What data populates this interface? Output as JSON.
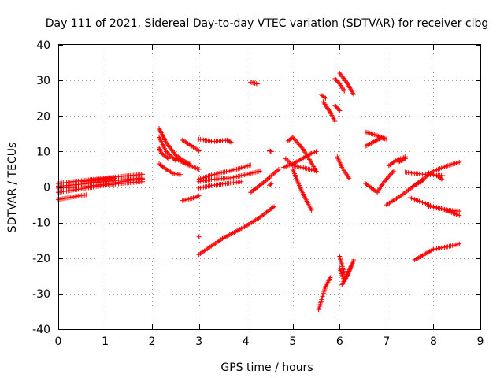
{
  "chart_data": {
    "type": "scatter",
    "title": "Day 111 of 2021, Sidereal Day-to-day VTEC variation (SDTVAR) for receiver cibg",
    "xlabel": "GPS time / hours",
    "ylabel": "SDTVAR / TECUs",
    "xlim": [
      0,
      9
    ],
    "ylim": [
      -40,
      40
    ],
    "xticks": [
      "0",
      "1",
      "2",
      "3",
      "4",
      "5",
      "6",
      "7",
      "8",
      "9"
    ],
    "yticks": [
      "-40",
      "-30",
      "-20",
      "-10",
      "0",
      "10",
      "20",
      "30",
      "40"
    ],
    "grid": true,
    "marker": "plus",
    "color": "#ff0000",
    "series": [
      {
        "segments": [
          [
            [
              0.0,
              1.0
            ],
            [
              0.5,
              1.8
            ],
            [
              1.0,
              2.5
            ],
            [
              1.5,
              3.2
            ],
            [
              1.8,
              3.6
            ]
          ],
          [
            [
              0.0,
              0.2
            ],
            [
              0.5,
              0.8
            ],
            [
              1.0,
              1.5
            ],
            [
              1.5,
              2.2
            ],
            [
              1.8,
              2.5
            ]
          ],
          [
            [
              0.0,
              -0.3
            ],
            [
              0.5,
              0.0
            ],
            [
              1.0,
              0.8
            ],
            [
              1.5,
              1.8
            ],
            [
              1.8,
              2.2
            ]
          ],
          [
            [
              0.0,
              -1.5
            ],
            [
              0.5,
              -0.5
            ],
            [
              1.0,
              0.5
            ],
            [
              1.5,
              1.2
            ],
            [
              1.8,
              1.5
            ]
          ],
          [
            [
              0.0,
              -3.5
            ],
            [
              0.3,
              -2.8
            ],
            [
              0.6,
              -2.2
            ]
          ],
          [
            [
              0.5,
              1.5
            ],
            [
              0.8,
              2.0
            ],
            [
              1.2,
              2.5
            ]
          ],
          [
            [
              2.15,
              16.5
            ],
            [
              2.3,
              12.5
            ],
            [
              2.5,
              9.0
            ],
            [
              2.7,
              7.2
            ],
            [
              2.8,
              6.5
            ]
          ],
          [
            [
              2.15,
              14.0
            ],
            [
              2.3,
              10.0
            ],
            [
              2.5,
              7.5
            ]
          ],
          [
            [
              2.15,
              11.0
            ],
            [
              2.2,
              9.5
            ],
            [
              2.35,
              8.0
            ]
          ],
          [
            [
              2.5,
              8.0
            ],
            [
              2.8,
              6.0
            ],
            [
              3.0,
              5.0
            ]
          ],
          [
            [
              2.15,
              6.5
            ],
            [
              2.3,
              5.0
            ],
            [
              2.45,
              3.8
            ],
            [
              2.6,
              3.5
            ]
          ],
          [
            [
              2.65,
              13.2
            ],
            [
              2.85,
              11.5
            ],
            [
              3.0,
              10.2
            ]
          ],
          [
            [
              2.65,
              -3.8
            ],
            [
              2.85,
              -3.2
            ],
            [
              3.0,
              -2.5
            ]
          ],
          [
            [
              3.0,
              13.5
            ],
            [
              3.3,
              12.8
            ],
            [
              3.6,
              13.2
            ],
            [
              3.7,
              12.5
            ]
          ],
          [
            [
              3.0,
              2.2
            ],
            [
              3.3,
              3.5
            ],
            [
              3.8,
              5.0
            ],
            [
              4.1,
              6.2
            ]
          ],
          [
            [
              3.0,
              1.5
            ],
            [
              3.3,
              2.2
            ],
            [
              3.7,
              2.6
            ],
            [
              4.0,
              3.5
            ],
            [
              4.3,
              4.5
            ]
          ],
          [
            [
              3.0,
              -0.3
            ],
            [
              3.3,
              0.5
            ],
            [
              3.6,
              1.0
            ],
            [
              3.9,
              1.5
            ]
          ],
          [
            [
              3.0,
              -19.0
            ],
            [
              3.5,
              -14.5
            ],
            [
              4.0,
              -11.0
            ],
            [
              4.3,
              -8.5
            ],
            [
              4.6,
              -5.5
            ]
          ],
          [
            [
              3.0,
              -14.0
            ]
          ],
          [
            [
              4.1,
              29.5
            ],
            [
              4.25,
              29.0
            ]
          ],
          [
            [
              4.1,
              -1.5
            ],
            [
              4.4,
              1.5
            ],
            [
              4.7,
              5.0
            ]
          ],
          [
            [
              4.5,
              10.2
            ],
            [
              4.55,
              10.0
            ]
          ],
          [
            [
              4.5,
              0.5
            ],
            [
              4.55,
              1.0
            ]
          ],
          [
            [
              4.8,
              5.5
            ],
            [
              5.0,
              6.5
            ],
            [
              5.2,
              8.0
            ],
            [
              5.4,
              9.5
            ],
            [
              5.5,
              10.0
            ]
          ],
          [
            [
              4.85,
              8.0
            ],
            [
              5.0,
              6.0
            ],
            [
              5.2,
              5.5
            ],
            [
              5.5,
              4.5
            ]
          ],
          [
            [
              4.9,
              13.0
            ],
            [
              5.0,
              14.0
            ],
            [
              5.2,
              11.0
            ],
            [
              5.3,
              9.0
            ],
            [
              5.5,
              4.5
            ]
          ],
          [
            [
              5.0,
              5.0
            ],
            [
              5.15,
              0.0
            ],
            [
              5.3,
              -4.0
            ],
            [
              5.4,
              -6.5
            ]
          ],
          [
            [
              5.6,
              26.0
            ],
            [
              5.7,
              25.0
            ]
          ],
          [
            [
              5.65,
              24.0
            ],
            [
              5.8,
              21.0
            ],
            [
              5.9,
              18.5
            ]
          ],
          [
            [
              5.55,
              -34.5
            ],
            [
              5.7,
              -28.0
            ],
            [
              5.8,
              -25.5
            ]
          ],
          [
            [
              5.9,
              30.5
            ],
            [
              6.0,
              29.0
            ],
            [
              6.1,
              27.0
            ]
          ],
          [
            [
              6.0,
              32.0
            ],
            [
              6.15,
              29.5
            ],
            [
              6.3,
              26.0
            ]
          ],
          [
            [
              5.9,
              23.0
            ],
            [
              6.0,
              21.5
            ]
          ],
          [
            [
              5.95,
              8.5
            ],
            [
              6.05,
              5.5
            ],
            [
              6.15,
              3.5
            ],
            [
              6.2,
              2.5
            ]
          ],
          [
            [
              6.0,
              -19.5
            ],
            [
              6.05,
              -22.0
            ],
            [
              6.1,
              -24.5
            ]
          ],
          [
            [
              6.0,
              -23.0
            ],
            [
              6.1,
              -26.5
            ],
            [
              6.2,
              -24.0
            ],
            [
              6.3,
              -20.5
            ]
          ],
          [
            [
              6.05,
              -27.5
            ],
            [
              6.15,
              -25.0
            ],
            [
              6.25,
              -22.0
            ]
          ],
          [
            [
              6.55,
              15.5
            ],
            [
              6.8,
              14.5
            ],
            [
              6.95,
              13.5
            ]
          ],
          [
            [
              6.55,
              11.5
            ],
            [
              6.7,
              12.5
            ],
            [
              6.9,
              14.0
            ],
            [
              7.0,
              13.5
            ]
          ],
          [
            [
              6.55,
              1.0
            ],
            [
              6.7,
              -0.5
            ],
            [
              6.8,
              -1.5
            ],
            [
              6.95,
              1.5
            ],
            [
              7.15,
              4.5
            ]
          ],
          [
            [
              7.05,
              6.0
            ],
            [
              7.2,
              7.5
            ],
            [
              7.4,
              8.5
            ]
          ],
          [
            [
              7.0,
              -5.0
            ],
            [
              7.3,
              -2.5
            ],
            [
              7.6,
              0.5
            ],
            [
              7.8,
              2.0
            ]
          ],
          [
            [
              7.25,
              7.0
            ],
            [
              7.4,
              8.0
            ]
          ],
          [
            [
              7.4,
              4.2
            ],
            [
              7.6,
              3.8
            ],
            [
              7.9,
              3.5
            ],
            [
              8.2,
              3.2
            ]
          ],
          [
            [
              7.5,
              -3.0
            ],
            [
              7.8,
              -4.5
            ],
            [
              8.0,
              -5.5
            ],
            [
              8.3,
              -6.5
            ],
            [
              8.55,
              -6.8
            ]
          ],
          [
            [
              7.9,
              -5.5
            ],
            [
              8.2,
              -6.2
            ],
            [
              8.55,
              -8.0
            ]
          ],
          [
            [
              7.6,
              0.5
            ],
            [
              7.8,
              2.5
            ],
            [
              8.0,
              4.5
            ],
            [
              8.3,
              6.0
            ],
            [
              8.55,
              7.0
            ]
          ],
          [
            [
              7.9,
              4.0
            ],
            [
              8.1,
              3.0
            ],
            [
              8.2,
              2.0
            ]
          ],
          [
            [
              7.6,
              -20.5
            ],
            [
              7.8,
              -19.0
            ],
            [
              8.0,
              -17.5
            ],
            [
              8.3,
              -16.8
            ],
            [
              8.55,
              -16.0
            ]
          ]
        ]
      }
    ]
  }
}
